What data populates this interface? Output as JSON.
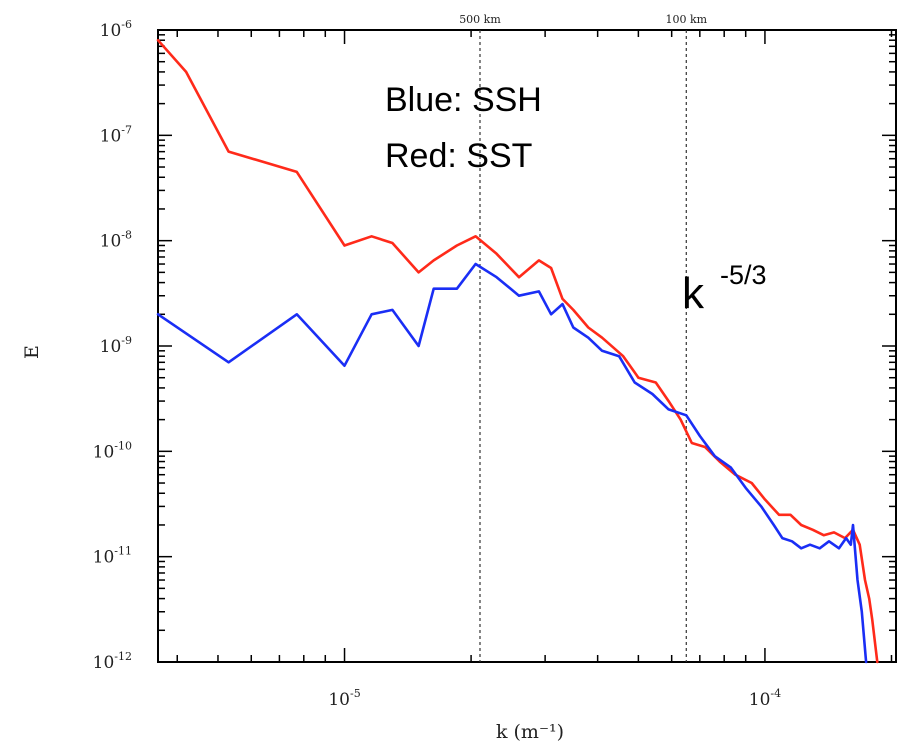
{
  "chart_data": {
    "type": "line",
    "title": "",
    "xlabel": "k (m⁻¹)",
    "ylabel": "E",
    "x_scale": "log",
    "y_scale": "log",
    "xlim": [
      3.6e-06,
      0.000205
    ],
    "ylim": [
      1e-12,
      1e-06
    ],
    "x_ticks": [
      {
        "value": 1e-05,
        "base": "10",
        "exp": "-5"
      },
      {
        "value": 0.0001,
        "base": "10",
        "exp": "-4"
      }
    ],
    "y_ticks": [
      {
        "value": 1e-06,
        "base": "10",
        "exp": "-6"
      },
      {
        "value": 1e-07,
        "base": "10",
        "exp": "-7"
      },
      {
        "value": 1e-08,
        "base": "10",
        "exp": "-8"
      },
      {
        "value": 1e-09,
        "base": "10",
        "exp": "-9"
      },
      {
        "value": 1e-10,
        "base": "10",
        "exp": "-10"
      },
      {
        "value": 1e-11,
        "base": "10",
        "exp": "-11"
      },
      {
        "value": 1e-12,
        "base": "10",
        "exp": "-12"
      }
    ],
    "reference_lines": [
      {
        "x": 2.1e-05,
        "label": "500 km"
      },
      {
        "x": 6.5e-05,
        "label": "100 km"
      }
    ],
    "annotations": {
      "legend_line1": "Blue: SSH",
      "legend_line2": "Red: SST",
      "slope_base": "k",
      "slope_exp": "-5/3"
    },
    "grid": false,
    "series": [
      {
        "name": "SST",
        "color": "#ff2a1a",
        "x": [
          3.6e-06,
          4.2e-06,
          5.3e-06,
          7.7e-06,
          1e-05,
          1.16e-05,
          1.3e-05,
          1.5e-05,
          1.63e-05,
          1.85e-05,
          2.05e-05,
          2.3e-05,
          2.6e-05,
          2.9e-05,
          3.1e-05,
          3.3e-05,
          3.5e-05,
          3.8e-05,
          4.1e-05,
          4.6e-05,
          5e-05,
          5.5e-05,
          5.9e-05,
          6.3e-05,
          6.7e-05,
          7.2e-05,
          7.8e-05,
          8.5e-05,
          9.3e-05,
          0.0001,
          0.000108,
          0.000115,
          0.000122,
          0.00013,
          0.000138,
          0.000146,
          0.000155,
          0.000162,
          0.000168,
          0.000173,
          0.000177,
          0.00018,
          0.000185
        ],
        "values": [
          8e-07,
          4e-07,
          7e-08,
          4.5e-08,
          9e-09,
          1.1e-08,
          9.5e-09,
          5e-09,
          6.5e-09,
          9e-09,
          1.1e-08,
          7.5e-09,
          4.5e-09,
          6.5e-09,
          5.5e-09,
          2.8e-09,
          2.2e-09,
          1.5e-09,
          1.2e-09,
          8e-10,
          5e-10,
          4.5e-10,
          3e-10,
          2e-10,
          1.2e-10,
          1.1e-10,
          8e-11,
          6e-11,
          5e-11,
          3.5e-11,
          2.5e-11,
          2.5e-11,
          2e-11,
          1.8e-11,
          1.6e-11,
          1.7e-11,
          1.5e-11,
          1.8e-11,
          1.3e-11,
          6e-12,
          4e-12,
          2.5e-12,
          1e-12
        ]
      },
      {
        "name": "SSH",
        "color": "#1a2ef5",
        "x": [
          3.6e-06,
          5.3e-06,
          7.7e-06,
          1e-05,
          1.16e-05,
          1.3e-05,
          1.5e-05,
          1.63e-05,
          1.85e-05,
          2.05e-05,
          2.3e-05,
          2.6e-05,
          2.9e-05,
          3.1e-05,
          3.3e-05,
          3.5e-05,
          3.8e-05,
          4.1e-05,
          4.5e-05,
          4.9e-05,
          5.4e-05,
          5.9e-05,
          6.5e-05,
          7e-05,
          7.6e-05,
          8.3e-05,
          9e-05,
          9.8e-05,
          0.000105,
          0.00011,
          0.000116,
          0.000122,
          0.000128,
          0.000135,
          0.000142,
          0.00015,
          0.000156,
          0.00016,
          0.000162,
          0.000166,
          0.00017,
          0.000174
        ],
        "values": [
          2e-09,
          7e-10,
          2e-09,
          6.5e-10,
          2e-09,
          2.2e-09,
          1e-09,
          3.5e-09,
          3.5e-09,
          6e-09,
          4.5e-09,
          3e-09,
          3.3e-09,
          2e-09,
          2.5e-09,
          1.5e-09,
          1.2e-09,
          9e-10,
          8e-10,
          4.5e-10,
          3.5e-10,
          2.5e-10,
          2.2e-10,
          1.4e-10,
          9e-11,
          7e-11,
          4.5e-11,
          3e-11,
          2e-11,
          1.5e-11,
          1.4e-11,
          1.2e-11,
          1.3e-11,
          1.2e-11,
          1.4e-11,
          1.2e-11,
          1.5e-11,
          1.3e-11,
          2e-11,
          6e-12,
          3e-12,
          1e-12
        ]
      }
    ]
  }
}
